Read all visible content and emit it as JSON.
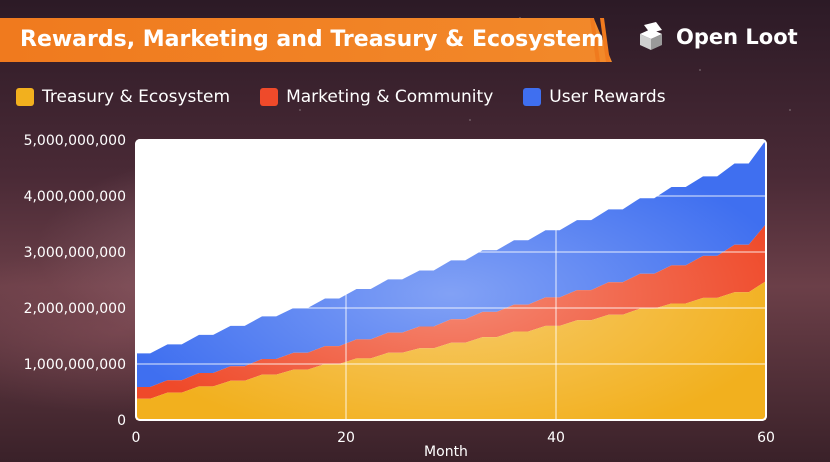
{
  "header": {
    "title": "Rewards, Marketing and Treasury & Ecosystem",
    "brand": "Open Loot"
  },
  "colors": {
    "banner": "#f07a1e",
    "treasury": "#f2b01e",
    "marketing": "#ef4a2a",
    "user_rewards": "#3f6ff0"
  },
  "chart_data": {
    "type": "area",
    "stacked": true,
    "xlabel": "Month",
    "ylabel": "",
    "xlim": [
      0,
      60
    ],
    "ylim": [
      0,
      5000000000
    ],
    "x_ticks": [
      "0",
      "20",
      "40",
      "60"
    ],
    "y_ticks": [
      "0",
      "1,000,000,000",
      "2,000,000,000",
      "3,000,000,000",
      "4,000,000,000",
      "5,000,000,000"
    ],
    "grid": true,
    "legend_position": "top",
    "x": [
      0,
      3,
      6,
      9,
      12,
      15,
      18,
      21,
      24,
      27,
      30,
      33,
      36,
      39,
      42,
      45,
      48,
      51,
      54,
      57,
      60
    ],
    "series": [
      {
        "name": "Treasury & Ecosystem",
        "values": [
          380000000,
          490000000,
          600000000,
          700000000,
          810000000,
          900000000,
          1000000000,
          1100000000,
          1200000000,
          1280000000,
          1380000000,
          1480000000,
          1580000000,
          1680000000,
          1780000000,
          1880000000,
          1990000000,
          2080000000,
          2180000000,
          2280000000,
          2480000000
        ]
      },
      {
        "name": "Marketing & Community",
        "values": [
          210000000,
          220000000,
          240000000,
          260000000,
          280000000,
          300000000,
          320000000,
          340000000,
          360000000,
          390000000,
          420000000,
          450000000,
          480000000,
          510000000,
          540000000,
          580000000,
          620000000,
          680000000,
          750000000,
          850000000,
          1020000000
        ]
      },
      {
        "name": "User Rewards",
        "values": [
          600000000,
          640000000,
          680000000,
          720000000,
          760000000,
          800000000,
          850000000,
          900000000,
          950000000,
          1000000000,
          1050000000,
          1100000000,
          1150000000,
          1200000000,
          1250000000,
          1300000000,
          1350000000,
          1400000000,
          1420000000,
          1450000000,
          1500000000
        ]
      }
    ]
  }
}
